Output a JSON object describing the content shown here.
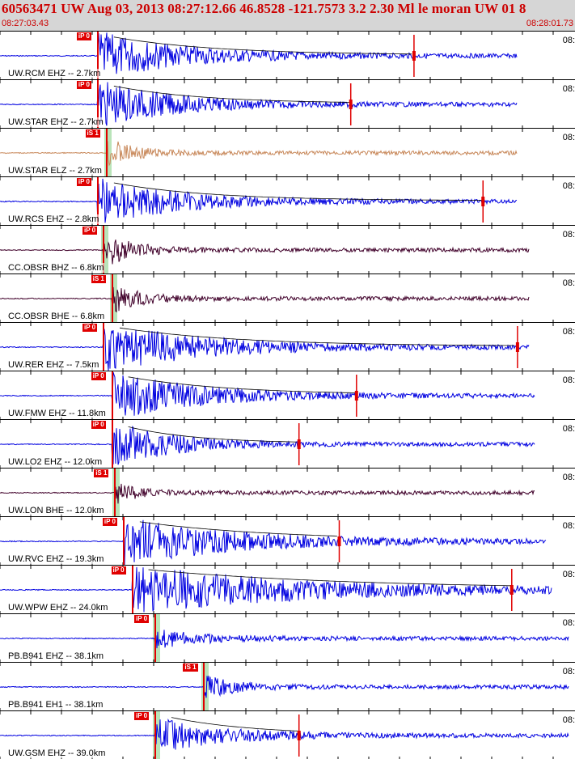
{
  "header": {
    "title": "60563471 UW Aug 03, 2013 08:27:12.66   46.8528 -121.7573  3.2 2.30 Ml le moran UW 01   8",
    "start_time": "08:27:03.43",
    "end_time": "08:28:01.73"
  },
  "panels": [
    {
      "label": "UW.RCM EHZ -- 2.7km",
      "right_tick": "08:",
      "color": "#0000e0",
      "pick": "iP 0",
      "onset": 0.17,
      "decay": 0.15,
      "end": 0.9,
      "amp": 1.0,
      "marker": 0.72,
      "band": false
    },
    {
      "label": "UW.STAR EHZ -- 2.7km",
      "right_tick": "08:",
      "color": "#0000e0",
      "pick": "iP 0",
      "onset": 0.17,
      "decay": 0.13,
      "end": 0.9,
      "amp": 1.0,
      "marker": 0.61,
      "band": false
    },
    {
      "label": "UW.STAR ELZ -- 2.7km",
      "right_tick": "08:",
      "color": "#c8885a",
      "pick": "iS 1",
      "onset": 0.185,
      "decay": 0.05,
      "end": 0.9,
      "amp": 0.6,
      "marker": null,
      "band": true
    },
    {
      "label": "UW.RCS EHZ -- 2.8km",
      "right_tick": "08:",
      "color": "#0000e0",
      "pick": "iP 0",
      "onset": 0.17,
      "decay": 0.14,
      "end": 0.9,
      "amp": 1.0,
      "marker": 0.84,
      "band": false
    },
    {
      "label": "CC.OBSR BHZ -- 6.8km",
      "right_tick": "08:",
      "color": "#40002a",
      "pick": "iP 0",
      "onset": 0.18,
      "decay": 0.05,
      "end": 0.92,
      "amp": 0.75,
      "marker": null,
      "band": true
    },
    {
      "label": "CC.OBSR BHE -- 6.8km",
      "right_tick": "08:",
      "color": "#40002a",
      "pick": "iS 1",
      "onset": 0.195,
      "decay": 0.05,
      "end": 0.92,
      "amp": 0.6,
      "marker": null,
      "band": true
    },
    {
      "label": "UW.RER EHZ -- 7.5km",
      "right_tick": "08:",
      "color": "#0000e0",
      "pick": "iP 0",
      "onset": 0.18,
      "decay": 0.18,
      "end": 0.92,
      "amp": 1.0,
      "marker": 0.9,
      "band": false
    },
    {
      "label": "UW.FMW EHZ -- 11.8km",
      "right_tick": "08:",
      "color": "#0000e0",
      "pick": "iP 0",
      "onset": 0.195,
      "decay": 0.15,
      "end": 0.93,
      "amp": 1.0,
      "marker": 0.62,
      "band": false
    },
    {
      "label": "UW.LO2 EHZ -- 12.0km",
      "right_tick": "08:",
      "color": "#0000e0",
      "pick": "iP 0",
      "onset": 0.195,
      "decay": 0.1,
      "end": 0.93,
      "amp": 1.0,
      "marker": 0.52,
      "band": false
    },
    {
      "label": "UW.LON BHE -- 12.0km",
      "right_tick": "08:",
      "color": "#40002a",
      "pick": "iS 1",
      "onset": 0.2,
      "decay": 0.04,
      "end": 0.93,
      "amp": 0.45,
      "marker": null,
      "band": true
    },
    {
      "label": "UW.RVC EHZ -- 19.3km",
      "right_tick": "08:",
      "color": "#0000e0",
      "pick": "iP 0",
      "onset": 0.215,
      "decay": 0.2,
      "end": 0.95,
      "amp": 1.0,
      "marker": 0.59,
      "band": false
    },
    {
      "label": "UW.WPW EHZ -- 24.0km",
      "right_tick": "08:",
      "color": "#0000e0",
      "pick": "iP 0",
      "onset": 0.23,
      "decay": 0.3,
      "end": 0.96,
      "amp": 1.0,
      "marker": 0.89,
      "band": false
    },
    {
      "label": "PB.B941 EHZ -- 38.1km",
      "right_tick": "08:",
      "color": "#0000e0",
      "pick": "iP 0",
      "onset": 0.27,
      "decay": 0.08,
      "end": 0.99,
      "amp": 0.4,
      "marker": null,
      "band": true
    },
    {
      "label": "PB.B941 EH1 -- 38.1km",
      "right_tick": "08:",
      "color": "#0000e0",
      "pick": "iS 1",
      "onset": 0.355,
      "decay": 0.06,
      "end": 0.99,
      "amp": 0.45,
      "marker": null,
      "band": true
    },
    {
      "label": "UW.GSM EHZ -- 39.0km",
      "right_tick": "08:",
      "color": "#0000e0",
      "pick": "iP 0",
      "onset": 0.27,
      "decay": 0.12,
      "end": 0.99,
      "amp": 0.7,
      "marker": 0.52,
      "band": true
    }
  ]
}
